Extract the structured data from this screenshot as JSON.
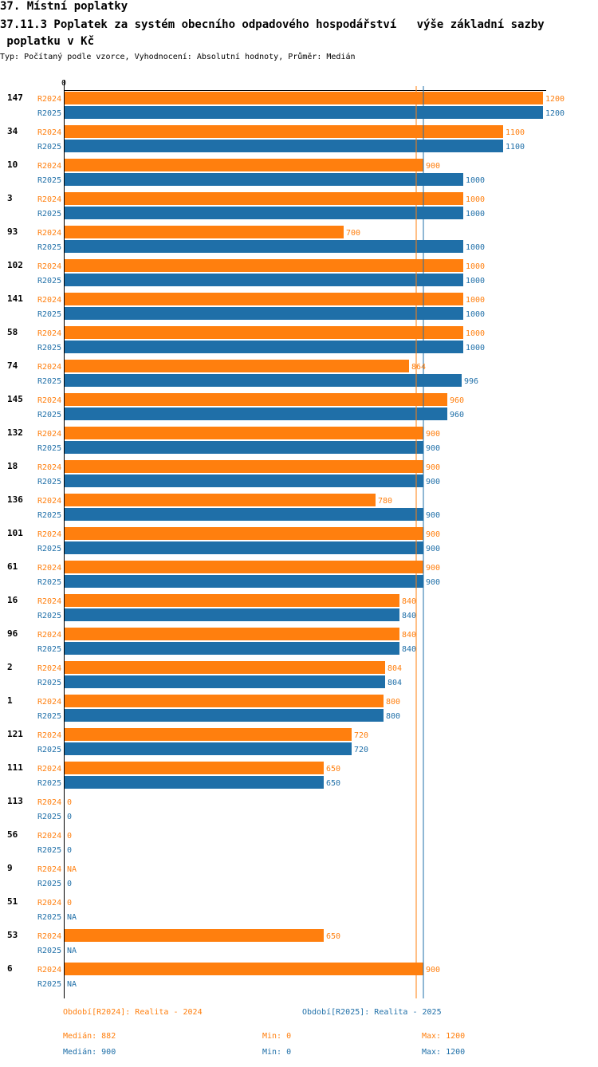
{
  "header": {
    "title": "37. Místní poplatky",
    "subtitle_line1": "37.11.3 Poplatek za systém obecního odpadového hospodářství   výše základní sazby",
    "subtitle_line2": " poplatku v Kč",
    "type_line": "Typ: Počítaný podle vzorce, Vyhodnocení: Absolutní hodnoty, Průměr: Medián"
  },
  "colors": {
    "r2024": "#ff7f0e",
    "r2025": "#1f6fa8"
  },
  "chart_data": {
    "type": "bar",
    "orientation": "horizontal",
    "axis_zero_label": "0",
    "xlim": [
      0,
      1200
    ],
    "series_names": [
      "R2024",
      "R2025"
    ],
    "categories": [
      "147",
      "34",
      "10",
      "3",
      "93",
      "102",
      "141",
      "58",
      "74",
      "145",
      "132",
      "18",
      "136",
      "101",
      "61",
      "16",
      "96",
      "2",
      "1",
      "121",
      "111",
      "113",
      "56",
      "9",
      "51",
      "53",
      "6"
    ],
    "series": [
      {
        "name": "R2024",
        "values": [
          1200,
          1100,
          900,
          1000,
          700,
          1000,
          1000,
          1000,
          864,
          960,
          900,
          900,
          780,
          900,
          900,
          840,
          840,
          804,
          800,
          720,
          650,
          0,
          0,
          null,
          0,
          650,
          900
        ],
        "labels": [
          "1200",
          "1100",
          "900",
          "1000",
          "700",
          "1000",
          "1000",
          "1000",
          "864",
          "960",
          "900",
          "900",
          "780",
          "900",
          "900",
          "840",
          "840",
          "804",
          "800",
          "720",
          "650",
          "0",
          "0",
          "NA",
          "0",
          "650",
          "900"
        ]
      },
      {
        "name": "R2025",
        "values": [
          1200,
          1100,
          1000,
          1000,
          1000,
          1000,
          1000,
          1000,
          996,
          960,
          900,
          900,
          900,
          900,
          900,
          840,
          840,
          804,
          800,
          720,
          650,
          0,
          0,
          0,
          null,
          null,
          null
        ],
        "labels": [
          "1200",
          "1100",
          "1000",
          "1000",
          "1000",
          "1000",
          "1000",
          "1000",
          "996",
          "960",
          "900",
          "900",
          "900",
          "900",
          "900",
          "840",
          "840",
          "804",
          "800",
          "720",
          "650",
          "0",
          "0",
          "0",
          "NA",
          "NA",
          "NA"
        ]
      }
    ],
    "median_lines": {
      "R2024": 882,
      "R2025": 900
    }
  },
  "footer": {
    "period_2024": "Období[R2024]: Realita - 2024",
    "period_2025": "Období[R2025]: Realita - 2025",
    "median_2024": "Medián: 882",
    "min_2024": "Min: 0",
    "max_2024": "Max: 1200",
    "median_2025": "Medián: 900",
    "min_2025": "Min: 0",
    "max_2025": "Max: 1200"
  }
}
